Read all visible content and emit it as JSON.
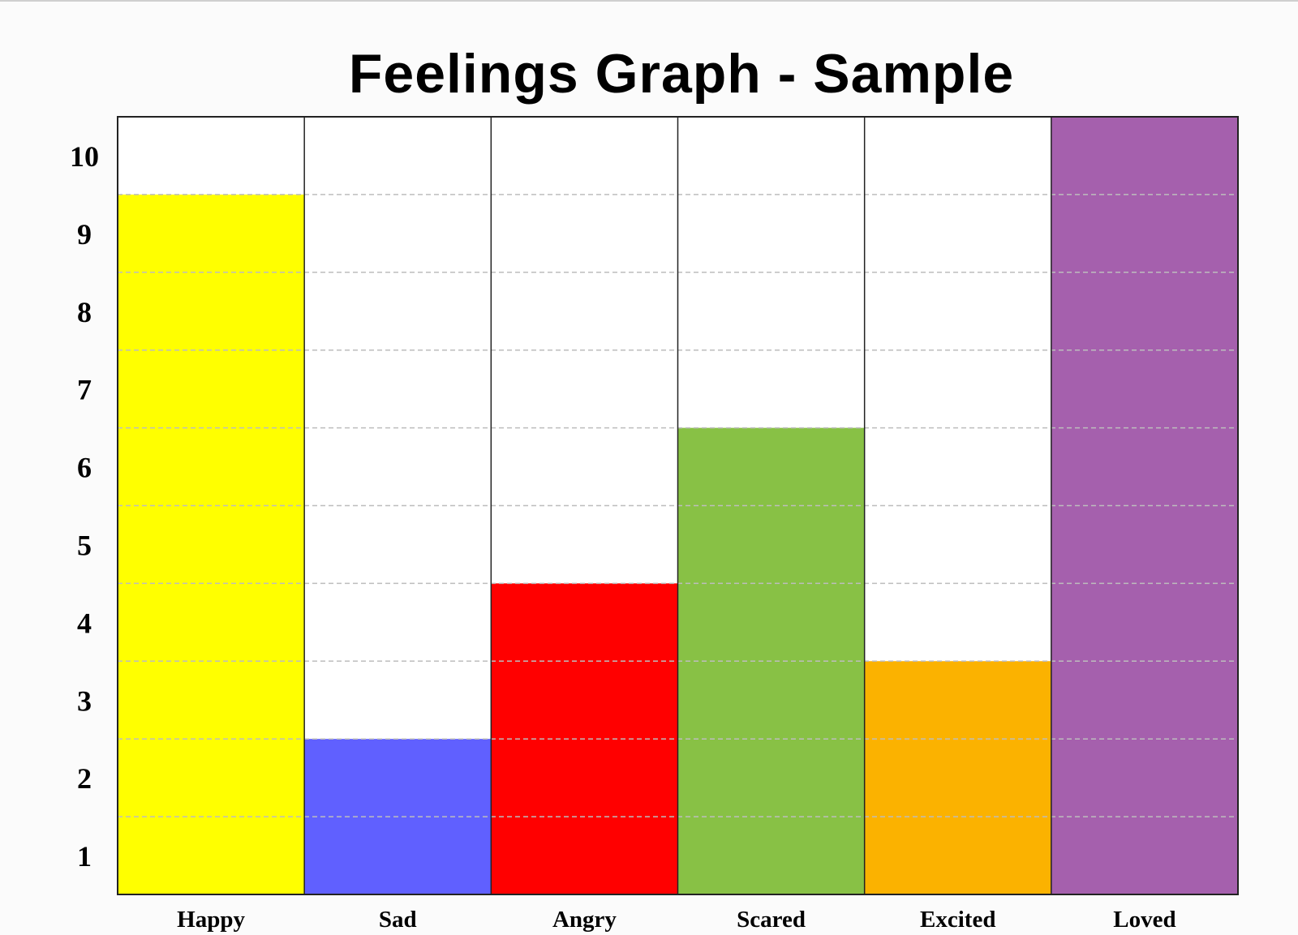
{
  "chart_data": {
    "type": "bar",
    "title": "Feelings Graph - Sample",
    "xlabel": "",
    "ylabel": "",
    "categories": [
      "Happy",
      "Sad",
      "Angry",
      "Scared",
      "Excited",
      "Loved"
    ],
    "values": [
      9.5,
      2.5,
      4.5,
      6.5,
      3.5,
      10.5
    ],
    "colors": [
      "#ffff00",
      "#6060ff",
      "#ff0000",
      "#88c145",
      "#fbb200",
      "#a560ad"
    ],
    "y_ticks": [
      1,
      2,
      3,
      4,
      5,
      6,
      7,
      8,
      9,
      10
    ],
    "ylim": [
      0.5,
      10.5
    ],
    "grid": "dashed horizontal",
    "legend": "none"
  }
}
